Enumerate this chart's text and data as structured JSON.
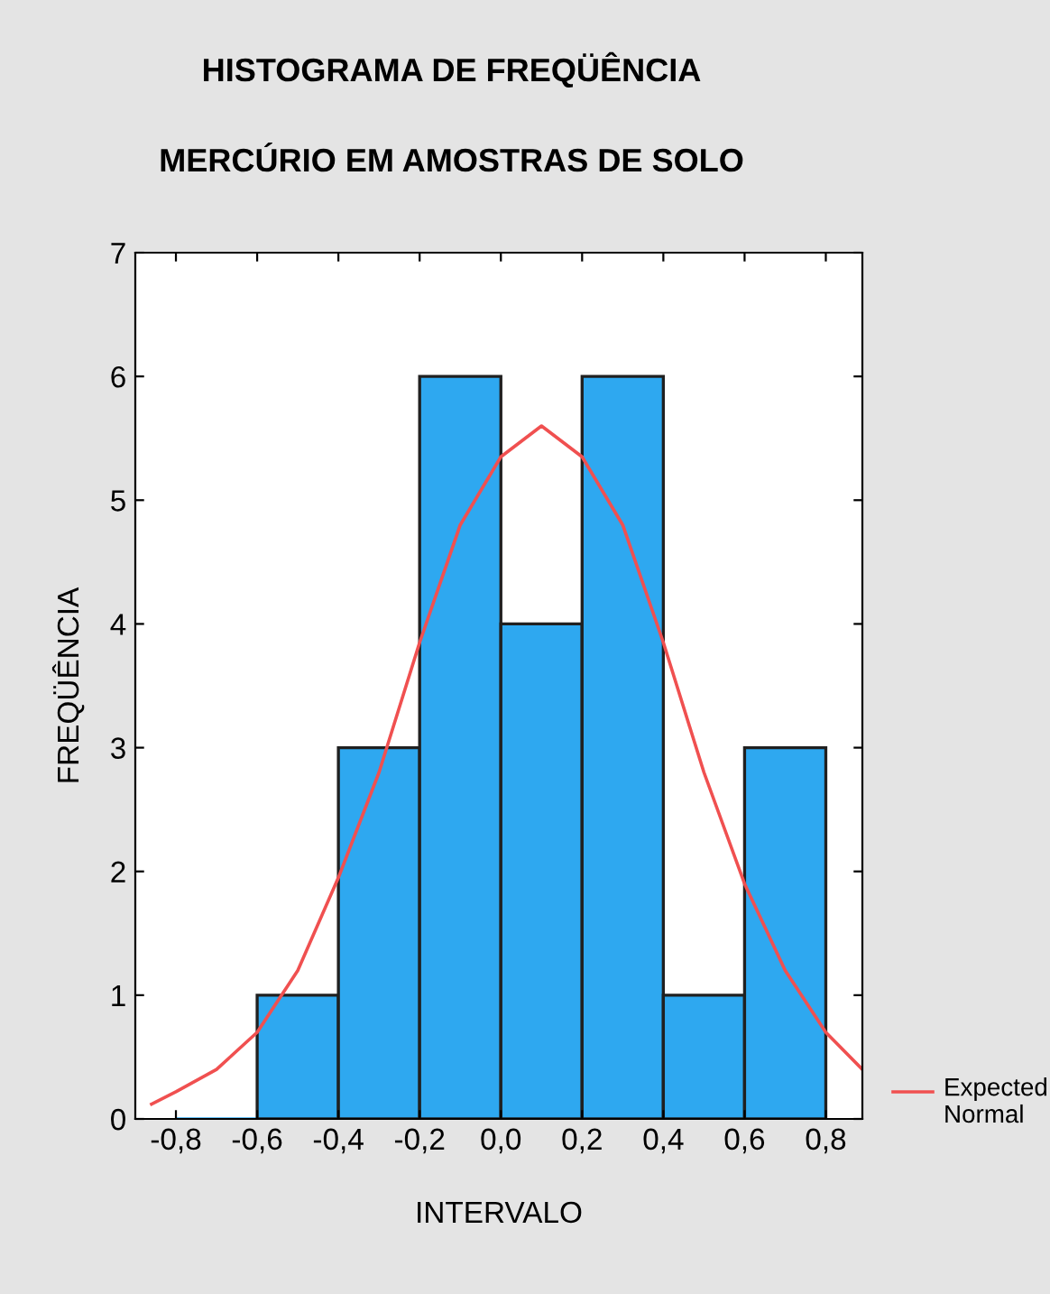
{
  "chart_data": {
    "type": "histogram",
    "title": "HISTOGRAMA DE FREQÜÊNCIA",
    "subtitle": "MERCÚRIO EM AMOSTRAS DE SOLO",
    "xlabel": "INTERVALO",
    "ylabel": "FREQÜÊNCIA",
    "bins": [
      -0.8,
      -0.6,
      -0.4,
      -0.2,
      0.0,
      0.2,
      0.4,
      0.6,
      0.8
    ],
    "values": [
      0,
      1,
      3,
      6,
      4,
      6,
      1,
      3
    ],
    "color": "#2ea8f0",
    "series": [
      {
        "type": "line",
        "name": "Expected Normal",
        "color": "#f05050",
        "x": [
          -0.86,
          -0.8,
          -0.7,
          -0.6,
          -0.5,
          -0.4,
          -0.3,
          -0.2,
          -0.1,
          0.0,
          0.1,
          0.2,
          0.3,
          0.4,
          0.5,
          0.6,
          0.7,
          0.8,
          0.89
        ],
        "values": [
          0.12,
          0.22,
          0.4,
          0.7,
          1.2,
          1.95,
          2.8,
          3.85,
          4.8,
          5.35,
          5.6,
          5.35,
          4.8,
          3.85,
          2.8,
          1.9,
          1.2,
          0.7,
          0.4
        ]
      }
    ],
    "xlim": [
      -0.9,
      0.89
    ],
    "ylim": [
      0,
      7
    ],
    "xticks": [
      {
        "value": -0.8,
        "label": "-0,8"
      },
      {
        "value": -0.6,
        "label": "-0,6"
      },
      {
        "value": -0.4,
        "label": "-0,4"
      },
      {
        "value": -0.2,
        "label": "-0,2"
      },
      {
        "value": 0.0,
        "label": "0,0"
      },
      {
        "value": 0.2,
        "label": "0,2"
      },
      {
        "value": 0.4,
        "label": "0,4"
      },
      {
        "value": 0.6,
        "label": "0,6"
      },
      {
        "value": 0.8,
        "label": "0,8"
      }
    ],
    "yticks": [
      0,
      1,
      2,
      3,
      4,
      5,
      6,
      7
    ],
    "legend": "right"
  }
}
